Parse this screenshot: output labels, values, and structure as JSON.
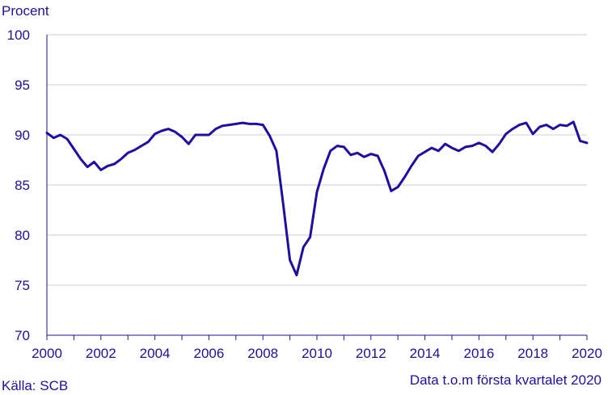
{
  "chart_data": {
    "type": "line",
    "title": "",
    "ylabel": "Procent",
    "xlabel": "",
    "source": "Källa: SCB",
    "note": "Data t.o.m första kvartalet 2020",
    "ylim": [
      70,
      100
    ],
    "yticks": [
      "70",
      "75",
      "80",
      "85",
      "90",
      "95",
      "100"
    ],
    "xlim": [
      2000,
      2020
    ],
    "xticks": [
      "2000",
      "2002",
      "2004",
      "2006",
      "2008",
      "2010",
      "2012",
      "2014",
      "2016",
      "2018",
      "2020"
    ],
    "grid": "horizontal",
    "color": "#1e0fa0",
    "series": [
      {
        "name": "",
        "x": [
          2000.0,
          2000.25,
          2000.5,
          2000.75,
          2001.0,
          2001.25,
          2001.5,
          2001.75,
          2002.0,
          2002.25,
          2002.5,
          2002.75,
          2003.0,
          2003.25,
          2003.5,
          2003.75,
          2004.0,
          2004.25,
          2004.5,
          2004.75,
          2005.0,
          2005.25,
          2005.5,
          2005.75,
          2006.0,
          2006.25,
          2006.5,
          2006.75,
          2007.0,
          2007.25,
          2007.5,
          2007.75,
          2008.0,
          2008.25,
          2008.5,
          2008.75,
          2009.0,
          2009.25,
          2009.5,
          2009.75,
          2010.0,
          2010.25,
          2010.5,
          2010.75,
          2011.0,
          2011.25,
          2011.5,
          2011.75,
          2012.0,
          2012.25,
          2012.5,
          2012.75,
          2013.0,
          2013.25,
          2013.5,
          2013.75,
          2014.0,
          2014.25,
          2014.5,
          2014.75,
          2015.0,
          2015.25,
          2015.5,
          2015.75,
          2016.0,
          2016.25,
          2016.5,
          2016.75,
          2017.0,
          2017.25,
          2017.5,
          2017.75,
          2018.0,
          2018.25,
          2018.5,
          2018.75,
          2019.0,
          2019.25,
          2019.5,
          2019.75,
          2020.0
        ],
        "y": [
          90.2,
          89.7,
          90.0,
          89.6,
          88.6,
          87.6,
          86.8,
          87.3,
          86.5,
          86.9,
          87.1,
          87.6,
          88.2,
          88.5,
          88.9,
          89.3,
          90.1,
          90.4,
          90.6,
          90.3,
          89.8,
          89.1,
          90.0,
          90.0,
          90.0,
          90.6,
          90.9,
          91.0,
          91.1,
          91.2,
          91.1,
          91.1,
          91.0,
          89.9,
          88.4,
          83.1,
          77.5,
          76.0,
          78.8,
          79.8,
          84.3,
          86.6,
          88.4,
          88.9,
          88.8,
          88.0,
          88.2,
          87.8,
          88.1,
          87.9,
          86.4,
          84.4,
          84.8,
          85.8,
          86.9,
          87.9,
          88.3,
          88.7,
          88.4,
          89.1,
          88.7,
          88.4,
          88.8,
          88.9,
          89.2,
          88.9,
          88.3,
          89.1,
          90.1,
          90.6,
          91.0,
          91.2,
          90.1,
          90.8,
          91.0,
          90.6,
          91.0,
          90.9,
          91.3,
          89.4,
          89.2
        ]
      }
    ]
  }
}
